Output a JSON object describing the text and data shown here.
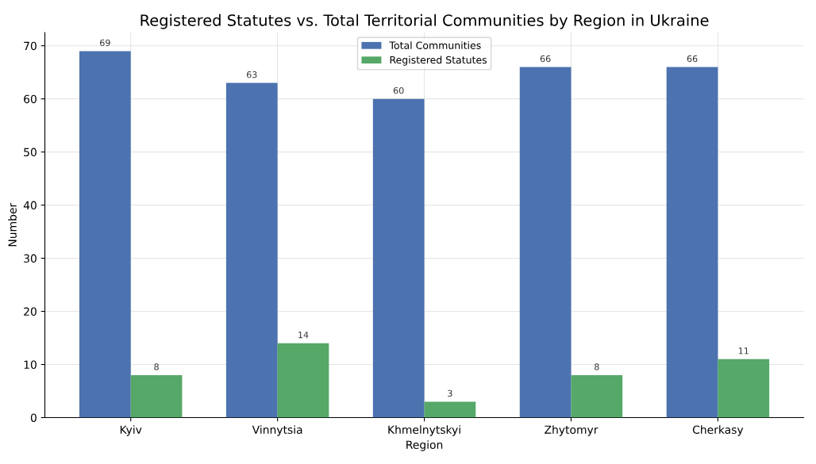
{
  "chart_data": {
    "type": "bar",
    "title": "Registered Statutes vs. Total Territorial Communities by Region in Ukraine",
    "xlabel": "Region",
    "ylabel": "Number",
    "categories": [
      "Kyiv",
      "Vinnytsia",
      "Khmelnytskyi",
      "Zhytomyr",
      "Cherkasy"
    ],
    "series": [
      {
        "name": "Total Communities",
        "color": "#4c72b0",
        "values": [
          69,
          63,
          60,
          66,
          66
        ]
      },
      {
        "name": "Registered Statutes",
        "color": "#55a868",
        "values": [
          8,
          14,
          3,
          8,
          11
        ]
      }
    ],
    "ylim": [
      0,
      72.5
    ],
    "yticks": [
      0,
      10,
      20,
      30,
      40,
      50,
      60,
      70
    ],
    "grid": true,
    "legend": "top",
    "data_labels": true
  }
}
